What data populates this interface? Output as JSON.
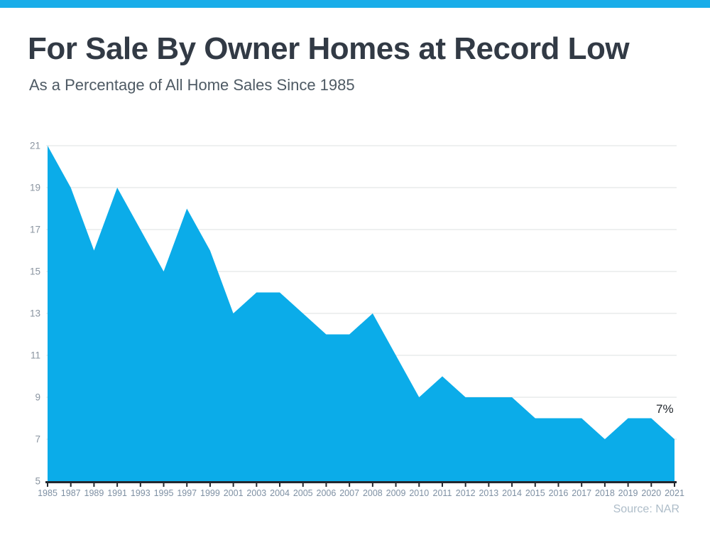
{
  "page": {
    "header_bar_color": "#19ADE9",
    "background_color": "#FFFFFF"
  },
  "chart_data": {
    "type": "area",
    "title": "For Sale By Owner Homes at Record Low",
    "subtitle": "As a Percentage of All Home Sales Since 1985",
    "x": [
      "1985",
      "1987",
      "1989",
      "1991",
      "1993",
      "1995",
      "1997",
      "1999",
      "2001",
      "2003",
      "2004",
      "2005",
      "2006",
      "2007",
      "2008",
      "2009",
      "2010",
      "2011",
      "2012",
      "2013",
      "2014",
      "2015",
      "2016",
      "2017",
      "2018",
      "2019",
      "2020",
      "2021"
    ],
    "values": [
      21,
      19,
      16,
      19,
      17,
      15,
      18,
      16,
      13,
      14,
      14,
      13,
      12,
      12,
      13,
      11,
      9,
      10,
      9,
      9,
      9,
      8,
      8,
      8,
      7,
      8,
      8,
      7
    ],
    "ylim": [
      5,
      21
    ],
    "yticks": [
      5,
      7,
      9,
      11,
      13,
      15,
      17,
      19,
      21
    ],
    "grid": true,
    "legend": false,
    "annotation": {
      "text": "7%",
      "year": "2021",
      "value": 7
    },
    "source": "Source: NAR",
    "colors": {
      "area": "#0BACE9",
      "gridline": "#E3E6E8",
      "axis": "#23282F",
      "x_labels": "#7E90A3",
      "y_labels": "#8A94A0"
    }
  }
}
